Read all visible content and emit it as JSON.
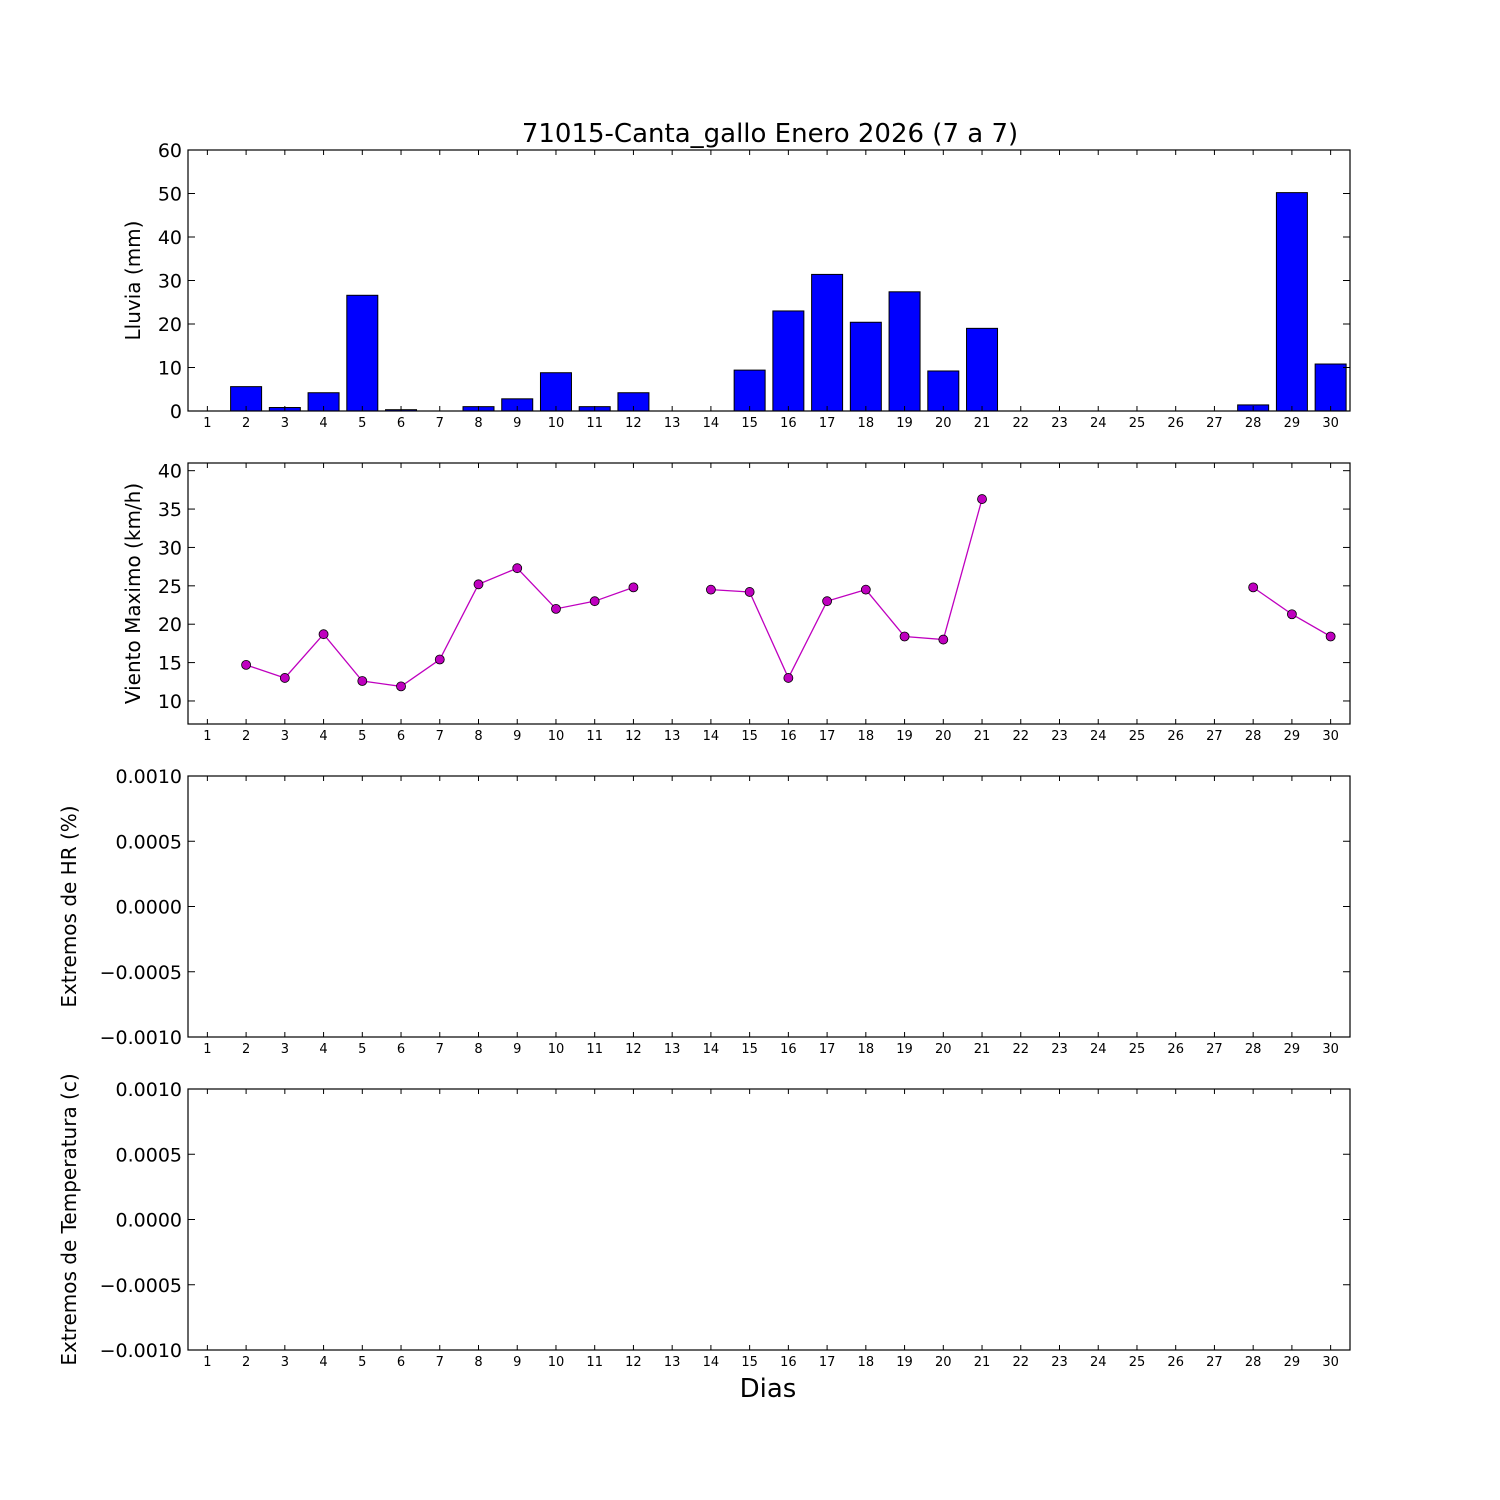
{
  "chart_data": {
    "title": "71015-Canta_gallo Enero 2026  (7 a 7)",
    "xlabel": "Dias",
    "days": [
      1,
      2,
      3,
      4,
      5,
      6,
      7,
      8,
      9,
      10,
      11,
      12,
      13,
      14,
      15,
      16,
      17,
      18,
      19,
      20,
      21,
      22,
      23,
      24,
      25,
      26,
      27,
      28,
      29,
      30
    ],
    "panels": [
      {
        "id": "rain",
        "type": "bar",
        "ylabel": "Lluvia (mm)",
        "ylim": [
          0,
          60
        ],
        "yticks": [
          "0",
          "10",
          "20",
          "30",
          "40",
          "50",
          "60"
        ],
        "values": [
          0,
          5.6,
          0.8,
          4.2,
          26.6,
          0.3,
          0,
          1.0,
          2.8,
          8.8,
          1.0,
          4.2,
          0,
          0,
          9.4,
          23.0,
          31.4,
          20.4,
          27.4,
          9.2,
          19.0,
          0,
          0,
          0,
          0,
          0,
          0,
          1.4,
          50.2,
          10.8
        ]
      },
      {
        "id": "wind",
        "type": "line",
        "ylabel": "Viento Maximo (km/h)",
        "ylim": [
          7,
          41
        ],
        "yticks": [
          "10",
          "15",
          "20",
          "25",
          "30",
          "35",
          "40"
        ],
        "values": [
          null,
          14.7,
          13.0,
          18.7,
          12.6,
          11.9,
          15.4,
          25.2,
          27.3,
          22.0,
          23.0,
          24.8,
          null,
          24.5,
          24.2,
          13.0,
          23.0,
          24.5,
          18.4,
          18.0,
          36.3,
          null,
          null,
          null,
          null,
          null,
          null,
          24.8,
          21.3,
          18.4
        ]
      },
      {
        "id": "hr",
        "type": "empty",
        "ylabel": "Extremos de HR (%)",
        "ylim": [
          -0.001,
          0.001
        ],
        "yticks": [
          "−0.0010",
          "−0.0005",
          "0.0000",
          "0.0005",
          "0.0010"
        ]
      },
      {
        "id": "temp",
        "type": "empty",
        "ylabel": "Extremos de Temperatura (c)",
        "ylim": [
          -0.001,
          0.001
        ],
        "yticks": [
          "−0.0010",
          "−0.0005",
          "0.0000",
          "0.0005",
          "0.0010"
        ]
      }
    ],
    "colors": {
      "bar": "#0000ff",
      "line": "#bf00bf"
    }
  }
}
